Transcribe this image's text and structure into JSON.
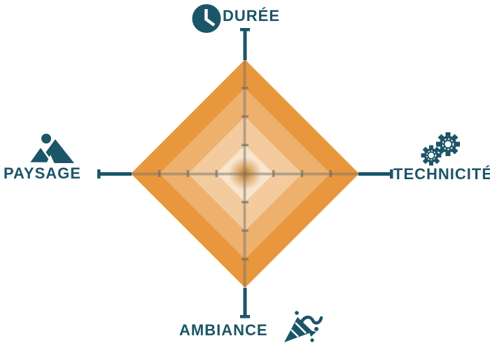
{
  "colors": {
    "teal": "#1B5568",
    "orange": "#E8973D",
    "center_glow": "#C06E10",
    "grid_line": "rgba(120,118,108,0.5)",
    "tick": "rgba(105,103,95,0.6)",
    "background": "#FFFFFF"
  },
  "labels": {
    "top": "DURÉE",
    "right": "TECHNICITÉ",
    "bottom": "AMBIANCE",
    "left": "PAYSAGE"
  },
  "icons": {
    "top": "clock-icon",
    "right": "gears-icon",
    "bottom": "party-popper-icon",
    "left": "mountain-icon"
  },
  "chart_data": {
    "type": "radar",
    "axes": [
      "DURÉE",
      "TECHNICITÉ",
      "AMBIANCE",
      "PAYSAGE"
    ],
    "axis_positions": [
      "top",
      "right",
      "bottom",
      "left"
    ],
    "values": [
      4,
      4,
      4,
      4
    ],
    "max_level": 4,
    "levels": 4,
    "ring_colors_outer_to_inner": [
      "#E8973D",
      "#EEB16D",
      "#F3CB9E",
      "#F9E5CE"
    ],
    "title": "",
    "legend": "none",
    "grid": "orthogonal cross axes with tick marks at each level"
  }
}
